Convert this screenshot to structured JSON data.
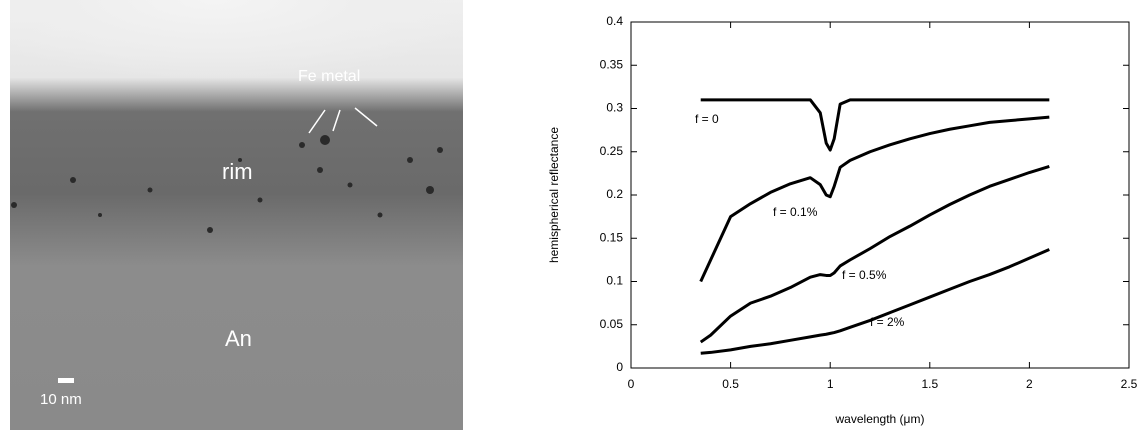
{
  "figure_labels": {
    "fe_metal": "Fe metal",
    "rim": "rim",
    "an": "An",
    "scale_bar": "10 nm"
  },
  "chart_data": {
    "type": "line",
    "xlabel": "wavelength (μm)",
    "ylabel": "hemispherical reflectance",
    "x": [
      0.35,
      0.4,
      0.5,
      0.6,
      0.7,
      0.8,
      0.9,
      0.95,
      0.98,
      1.0,
      1.02,
      1.05,
      1.1,
      1.2,
      1.3,
      1.4,
      1.5,
      1.6,
      1.7,
      1.8,
      1.9,
      2.0,
      2.1
    ],
    "series": [
      {
        "name": "f = 0",
        "color": "#000000",
        "values": [
          0.31,
          0.31,
          0.31,
          0.31,
          0.31,
          0.31,
          0.31,
          0.295,
          0.26,
          0.252,
          0.265,
          0.305,
          0.31,
          0.31,
          0.31,
          0.31,
          0.31,
          0.31,
          0.31,
          0.31,
          0.31,
          0.31,
          0.31
        ]
      },
      {
        "name": "f = 0.1%",
        "color": "#000000",
        "values": [
          0.1,
          0.125,
          0.175,
          0.19,
          0.203,
          0.213,
          0.22,
          0.212,
          0.2,
          0.198,
          0.21,
          0.232,
          0.24,
          0.25,
          0.258,
          0.265,
          0.271,
          0.276,
          0.28,
          0.284,
          0.286,
          0.288,
          0.29
        ]
      },
      {
        "name": "f = 0.5%",
        "color": "#000000",
        "values": [
          0.03,
          0.038,
          0.06,
          0.075,
          0.083,
          0.093,
          0.105,
          0.108,
          0.107,
          0.107,
          0.11,
          0.118,
          0.125,
          0.138,
          0.152,
          0.164,
          0.177,
          0.189,
          0.2,
          0.21,
          0.218,
          0.226,
          0.233
        ]
      },
      {
        "name": "f = 2%",
        "color": "#000000",
        "values": [
          0.017,
          0.018,
          0.021,
          0.025,
          0.028,
          0.032,
          0.036,
          0.038,
          0.039,
          0.04,
          0.041,
          0.043,
          0.047,
          0.055,
          0.064,
          0.073,
          0.082,
          0.091,
          0.1,
          0.108,
          0.117,
          0.127,
          0.137
        ]
      }
    ],
    "xlim": [
      0,
      2.5
    ],
    "xticks": [
      0,
      0.5,
      1,
      1.5,
      2,
      2.5
    ],
    "ylim": [
      0,
      0.4
    ],
    "yticks": [
      0,
      0.05,
      0.1,
      0.15,
      0.2,
      0.25,
      0.3,
      0.35,
      0.4
    ]
  }
}
